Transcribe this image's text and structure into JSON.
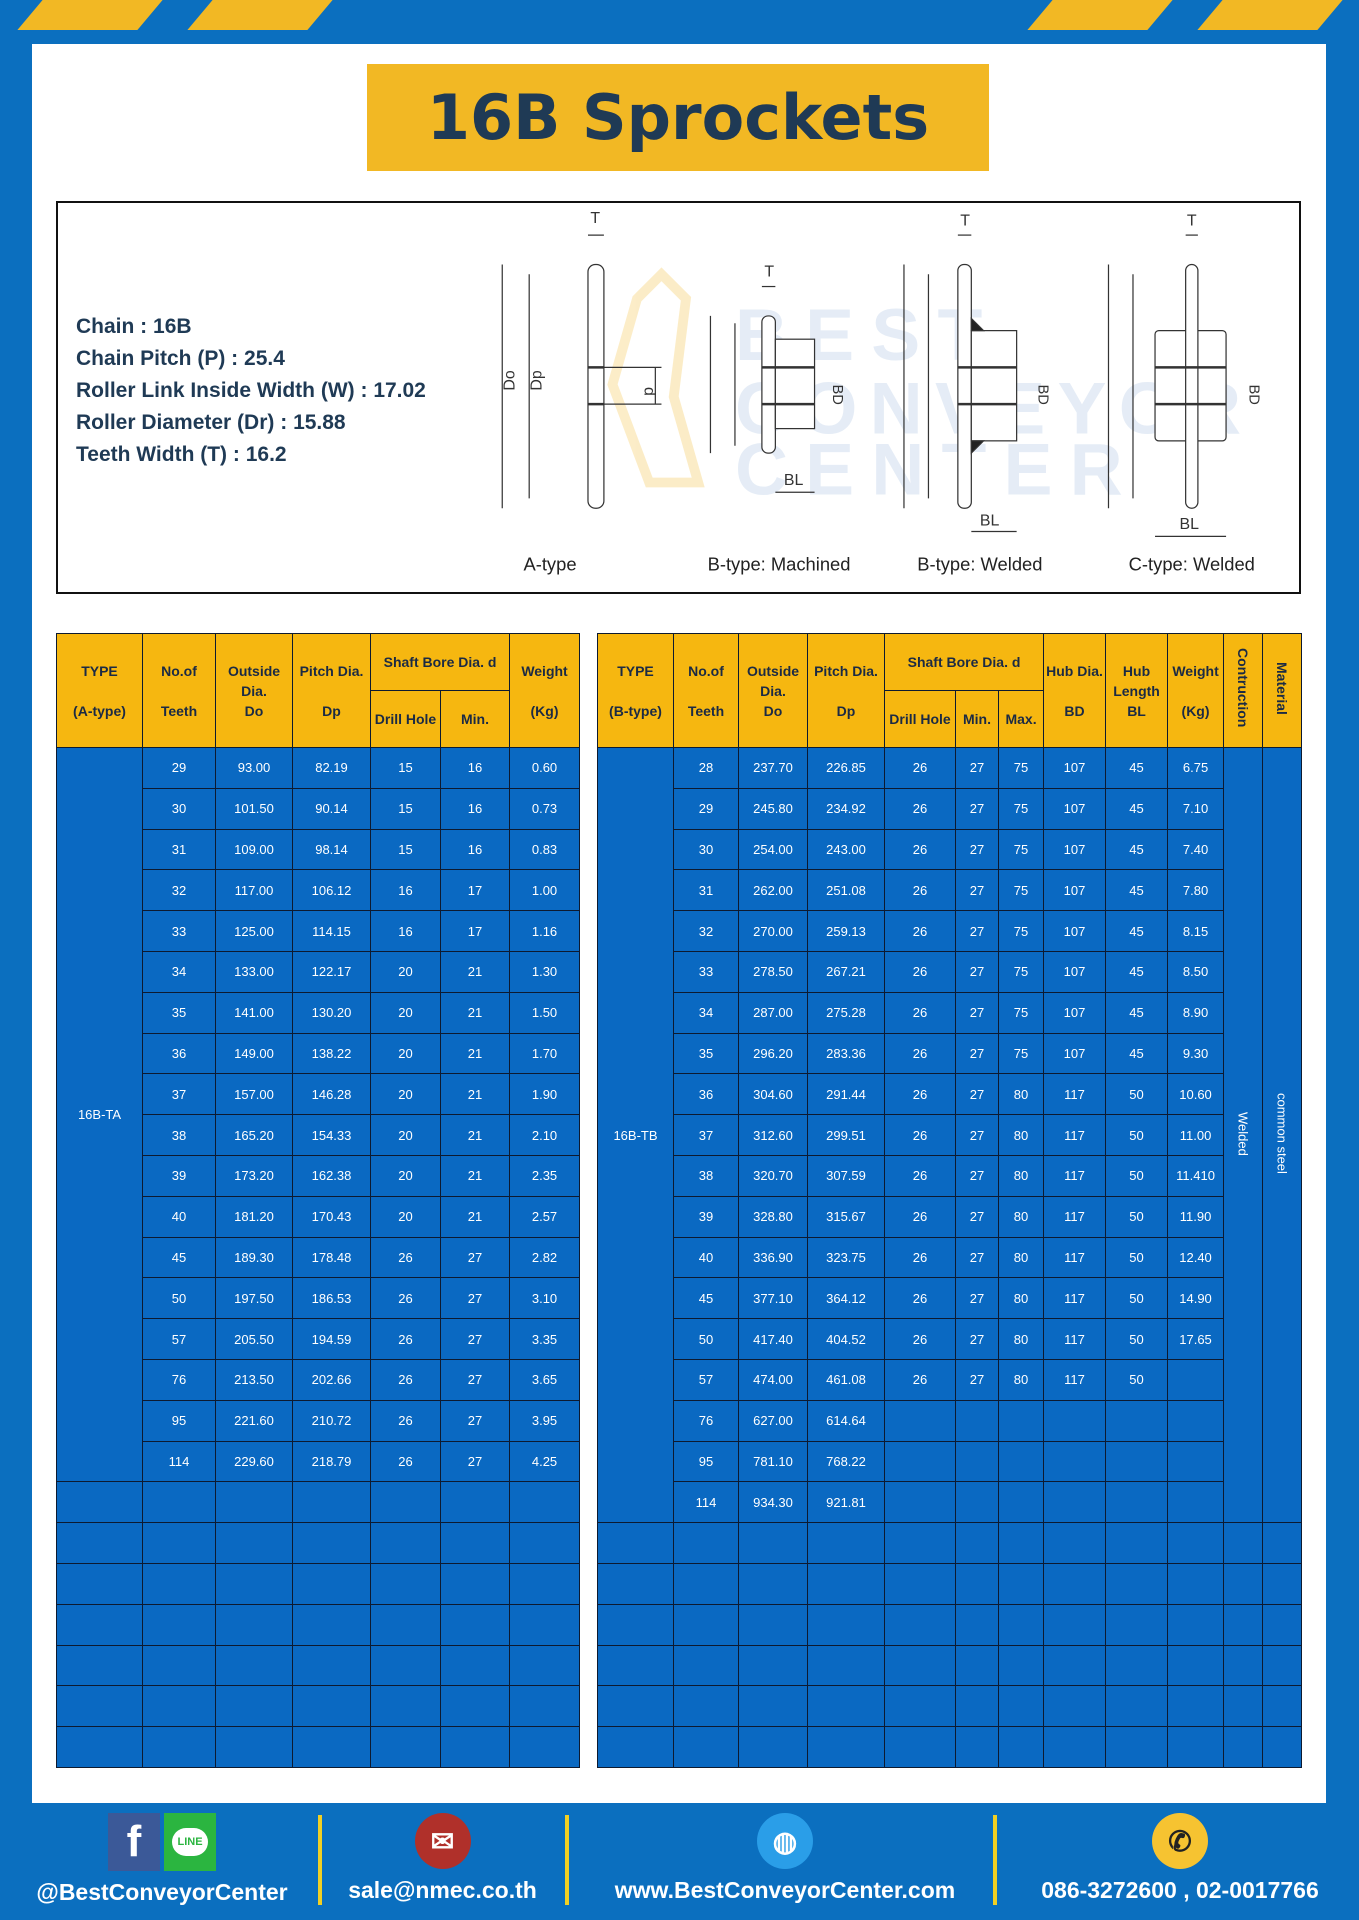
{
  "title": "16B Sprockets",
  "specs": [
    {
      "label": "Chain",
      "value": "16B"
    },
    {
      "label": "Chain Pitch (P)",
      "value": "25.4"
    },
    {
      "label": "Roller Link Inside Width (W)",
      "value": "17.02"
    },
    {
      "label": "Roller Diameter (Dr)",
      "value": "15.88"
    },
    {
      "label": "Teeth Width (T)",
      "value": "16.2"
    }
  ],
  "diagram": {
    "captions": [
      "A-type",
      "B-type: Machined",
      "B-type: Welded",
      "C-type: Welded"
    ],
    "dim_labels": {
      "do": "Do",
      "dp": "Dp",
      "d": "d",
      "bd": "BD",
      "t": "T",
      "bl": "BL"
    }
  },
  "table_a": {
    "headers": {
      "type": "TYPE",
      "type2": "(A-type)",
      "teeth": "No.of",
      "teeth2": "Teeth",
      "od": "Outside",
      "od2": "Dia.",
      "od3": "Do",
      "pd": "Pitch Dia.",
      "pd2": "Dp",
      "bore": "Shaft Bore Dia. d",
      "drill": "Drill Hole",
      "min": "Min.",
      "weight": "Weight",
      "weight2": "(Kg)"
    },
    "type_label": "16B-TA",
    "rows": [
      [
        "29",
        "93.00",
        "82.19",
        "15",
        "16",
        "0.60"
      ],
      [
        "30",
        "101.50",
        "90.14",
        "15",
        "16",
        "0.73"
      ],
      [
        "31",
        "109.00",
        "98.14",
        "15",
        "16",
        "0.83"
      ],
      [
        "32",
        "117.00",
        "106.12",
        "16",
        "17",
        "1.00"
      ],
      [
        "33",
        "125.00",
        "114.15",
        "16",
        "17",
        "1.16"
      ],
      [
        "34",
        "133.00",
        "122.17",
        "20",
        "21",
        "1.30"
      ],
      [
        "35",
        "141.00",
        "130.20",
        "20",
        "21",
        "1.50"
      ],
      [
        "36",
        "149.00",
        "138.22",
        "20",
        "21",
        "1.70"
      ],
      [
        "37",
        "157.00",
        "146.28",
        "20",
        "21",
        "1.90"
      ],
      [
        "38",
        "165.20",
        "154.33",
        "20",
        "21",
        "2.10"
      ],
      [
        "39",
        "173.20",
        "162.38",
        "20",
        "21",
        "2.35"
      ],
      [
        "40",
        "181.20",
        "170.43",
        "20",
        "21",
        "2.57"
      ],
      [
        "45",
        "189.30",
        "178.48",
        "26",
        "27",
        "2.82"
      ],
      [
        "50",
        "197.50",
        "186.53",
        "26",
        "27",
        "3.10"
      ],
      [
        "57",
        "205.50",
        "194.59",
        "26",
        "27",
        "3.35"
      ],
      [
        "76",
        "213.50",
        "202.66",
        "26",
        "27",
        "3.65"
      ],
      [
        "95",
        "221.60",
        "210.72",
        "26",
        "27",
        "3.95"
      ],
      [
        "114",
        "229.60",
        "218.79",
        "26",
        "27",
        "4.25"
      ]
    ]
  },
  "table_b": {
    "headers": {
      "type": "TYPE",
      "type2": "(B-type)",
      "teeth": "No.of",
      "teeth2": "Teeth",
      "od": "Outside",
      "od2": "Dia.",
      "od3": "Do",
      "pd": "Pitch Dia.",
      "pd2": "Dp",
      "bore": "Shaft Bore Dia. d",
      "drill": "Drill Hole",
      "min": "Min.",
      "max": "Max.",
      "hub": "Hub Dia.",
      "hub2": "BD",
      "hl": "Hub",
      "hl2": "Length",
      "hl3": "BL",
      "weight": "Weight",
      "weight2": "(Kg)",
      "construction": "Contruction",
      "material": "Material"
    },
    "type_label": "16B-TB",
    "construction": "Welded",
    "material": "common steel",
    "rows": [
      [
        "28",
        "237.70",
        "226.85",
        "26",
        "27",
        "75",
        "107",
        "45",
        "6.75"
      ],
      [
        "29",
        "245.80",
        "234.92",
        "26",
        "27",
        "75",
        "107",
        "45",
        "7.10"
      ],
      [
        "30",
        "254.00",
        "243.00",
        "26",
        "27",
        "75",
        "107",
        "45",
        "7.40"
      ],
      [
        "31",
        "262.00",
        "251.08",
        "26",
        "27",
        "75",
        "107",
        "45",
        "7.80"
      ],
      [
        "32",
        "270.00",
        "259.13",
        "26",
        "27",
        "75",
        "107",
        "45",
        "8.15"
      ],
      [
        "33",
        "278.50",
        "267.21",
        "26",
        "27",
        "75",
        "107",
        "45",
        "8.50"
      ],
      [
        "34",
        "287.00",
        "275.28",
        "26",
        "27",
        "75",
        "107",
        "45",
        "8.90"
      ],
      [
        "35",
        "296.20",
        "283.36",
        "26",
        "27",
        "75",
        "107",
        "45",
        "9.30"
      ],
      [
        "36",
        "304.60",
        "291.44",
        "26",
        "27",
        "80",
        "117",
        "50",
        "10.60"
      ],
      [
        "37",
        "312.60",
        "299.51",
        "26",
        "27",
        "80",
        "117",
        "50",
        "11.00"
      ],
      [
        "38",
        "320.70",
        "307.59",
        "26",
        "27",
        "80",
        "117",
        "50",
        "11.410"
      ],
      [
        "39",
        "328.80",
        "315.67",
        "26",
        "27",
        "80",
        "117",
        "50",
        "11.90"
      ],
      [
        "40",
        "336.90",
        "323.75",
        "26",
        "27",
        "80",
        "117",
        "50",
        "12.40"
      ],
      [
        "45",
        "377.10",
        "364.12",
        "26",
        "27",
        "80",
        "117",
        "50",
        "14.90"
      ],
      [
        "50",
        "417.40",
        "404.52",
        "26",
        "27",
        "80",
        "117",
        "50",
        "17.65"
      ],
      [
        "57",
        "474.00",
        "461.08",
        "26",
        "27",
        "80",
        "117",
        "50",
        ""
      ],
      [
        "76",
        "627.00",
        "614.64",
        "",
        "",
        "",
        "",
        "",
        ""
      ],
      [
        "95",
        "781.10",
        "768.22",
        "",
        "",
        "",
        "",
        "",
        ""
      ],
      [
        "114",
        "934.30",
        "921.81",
        "",
        "",
        "",
        "",
        "",
        ""
      ]
    ]
  },
  "footer": {
    "social": "@BestConveyorCenter",
    "line_label": "LINE",
    "email": "sale@nmec.co.th",
    "website": "www.BestConveyorCenter.com",
    "phone": "086-3272600 , 02-0017766"
  },
  "colors": {
    "background": "#0b6fbf",
    "accent": "#f2b824",
    "cell": "#0a69c2",
    "title_text": "#1f3a55"
  }
}
